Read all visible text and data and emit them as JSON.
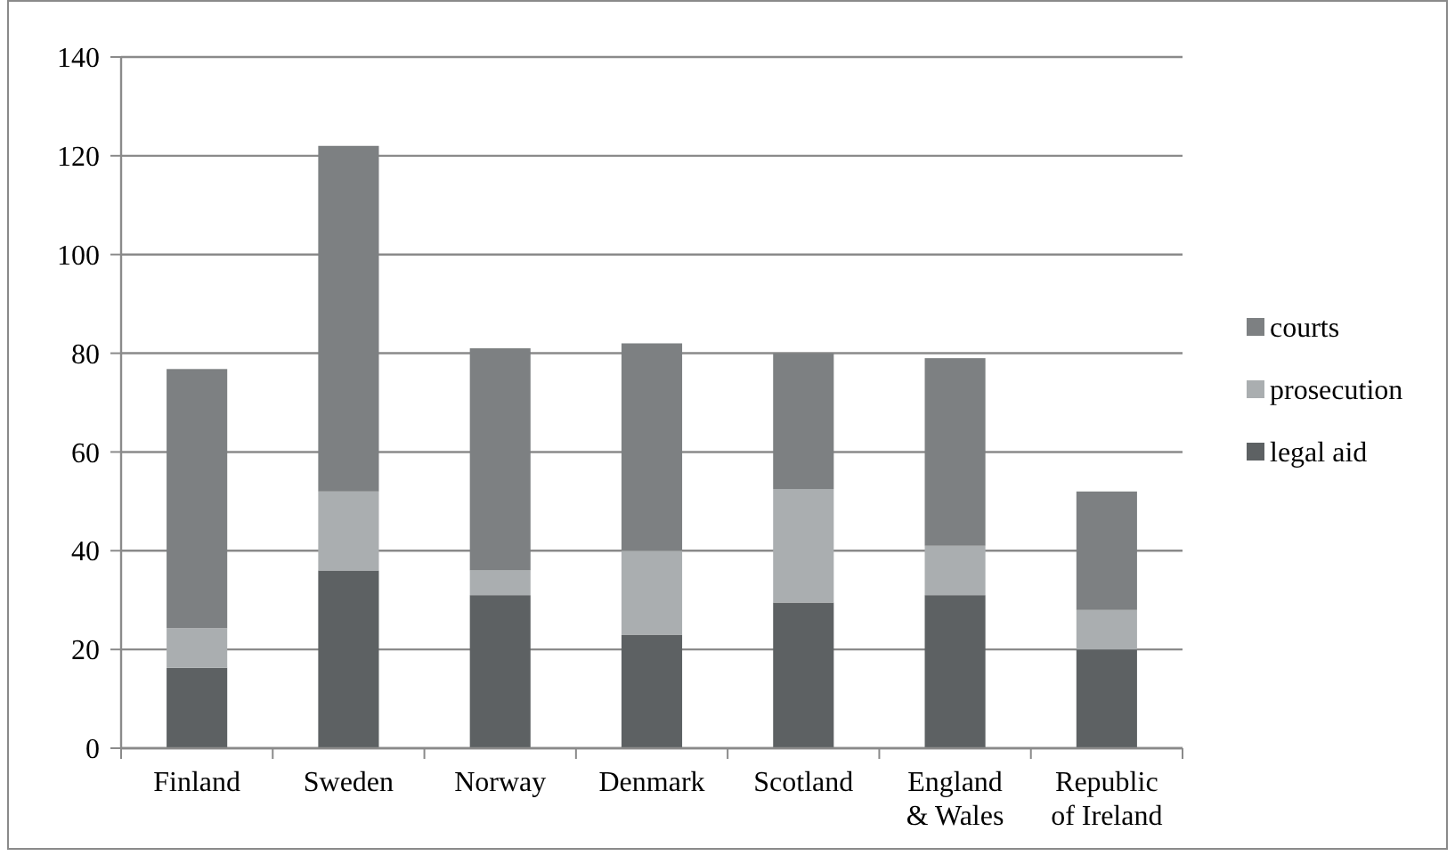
{
  "chart_data": {
    "type": "bar",
    "stacked": true,
    "categories": [
      "Finland",
      "Sweden",
      "Norway",
      "Denmark",
      "Scotland",
      "England & Wales",
      "Republic of Ireland"
    ],
    "series": [
      {
        "name": "legal aid",
        "color": "#5d6163",
        "values": [
          16.3,
          36,
          31,
          23,
          29.5,
          31,
          20
        ]
      },
      {
        "name": "prosecution",
        "color": "#aaaeb0",
        "values": [
          8,
          16,
          5,
          17,
          23,
          10,
          8
        ]
      },
      {
        "name": "courts",
        "color": "#7d8082",
        "values": [
          52.5,
          70,
          45,
          42,
          27.5,
          38,
          24
        ]
      }
    ],
    "ylim": [
      0,
      140
    ],
    "yticks": [
      0,
      20,
      40,
      60,
      80,
      100,
      120,
      140
    ],
    "grid": "y",
    "legend": "right"
  }
}
